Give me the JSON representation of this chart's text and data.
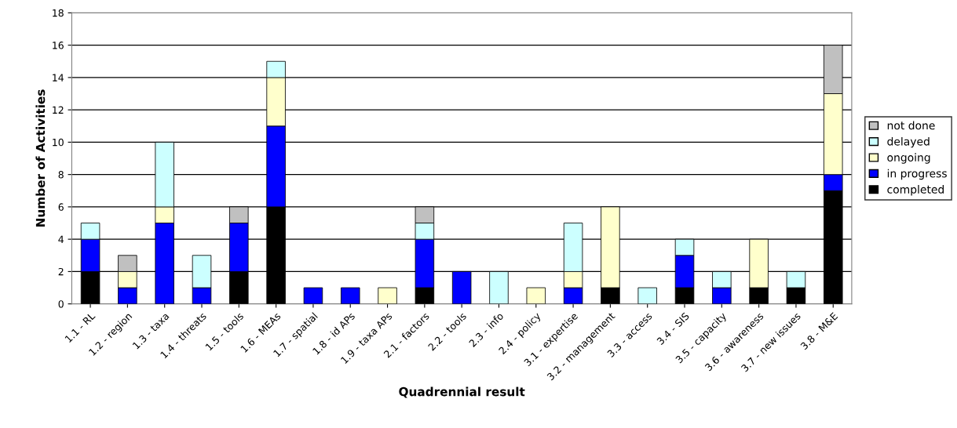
{
  "chart_data": {
    "type": "bar",
    "stacked": true,
    "xlabel": "Quadrennial result",
    "ylabel": "Number of Activities",
    "categories": [
      "1.1 - RL",
      "1.2 - region",
      "1.3 - taxa",
      "1.4 - threats",
      "1.5 - tools",
      "1.6 - MEAs",
      "1.7 - spatial",
      "1.8 - id APs",
      "1.9 - taxa APs",
      "2.1 - factors",
      "2.2 - tools",
      "2.3 - info",
      "2.4 - policy",
      "3.1 - expertise",
      "3.2 - management",
      "3.3 - access",
      "3.4 - SIS",
      "3.5 - capacity",
      "3.6 - awareness",
      "3.7 - new issues",
      "3.8 - M&E"
    ],
    "series": [
      {
        "name": "completed",
        "color": "#000000",
        "values": [
          2,
          null,
          null,
          null,
          2,
          6,
          null,
          null,
          null,
          1,
          null,
          null,
          null,
          null,
          1,
          null,
          1,
          null,
          1,
          1,
          7
        ]
      },
      {
        "name": "in progress",
        "color": "#0000ff",
        "values": [
          2,
          1,
          5,
          1,
          3,
          5,
          1,
          1,
          null,
          3,
          2,
          null,
          null,
          1,
          null,
          null,
          2,
          1,
          null,
          null,
          1
        ]
      },
      {
        "name": "ongoing",
        "color": "#ffffcc",
        "values": [
          null,
          1,
          1,
          null,
          null,
          3,
          null,
          null,
          1,
          null,
          null,
          null,
          1,
          1,
          5,
          null,
          null,
          null,
          3,
          null,
          5
        ]
      },
      {
        "name": "delayed",
        "color": "#ccffff",
        "values": [
          1,
          null,
          4,
          2,
          null,
          1,
          null,
          null,
          null,
          1,
          null,
          2,
          null,
          3,
          null,
          1,
          1,
          1,
          null,
          1,
          null
        ]
      },
      {
        "name": "not done",
        "color": "#c0c0c0",
        "values": [
          null,
          1,
          null,
          null,
          1,
          null,
          null,
          null,
          null,
          1,
          null,
          null,
          null,
          null,
          null,
          null,
          null,
          null,
          null,
          null,
          3
        ]
      }
    ],
    "ylim": [
      0,
      18
    ],
    "yticks": [
      0,
      2,
      4,
      6,
      8,
      10,
      12,
      14,
      16,
      18
    ],
    "grid": "y",
    "legend": "right"
  }
}
